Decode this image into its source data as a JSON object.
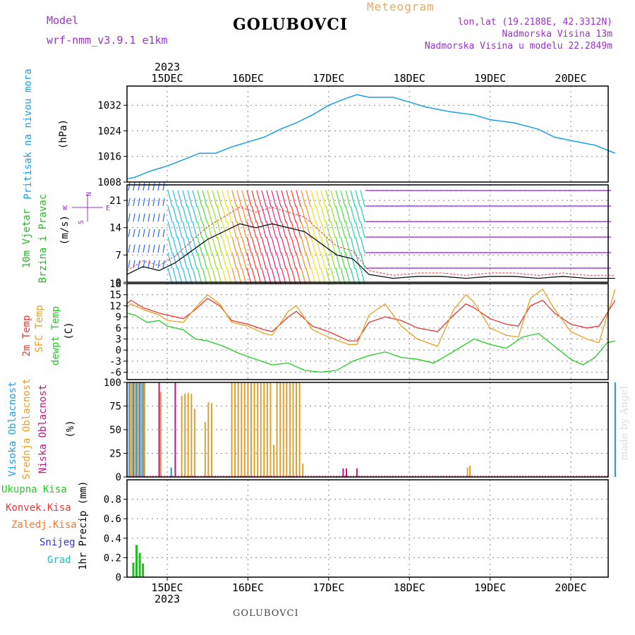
{
  "header": {
    "model_label": "Model",
    "model_name": "wrf-nmm_v3.9.1  e1km",
    "station": "GOLUBOVCI",
    "product": "Meteogram",
    "lonlat": "lon,lat (19.2188E, 42.3312N)",
    "elevation": "Nadmorska Visina 13m",
    "model_elevation": "Nadmorska Visina u modelu 22.2849m"
  },
  "footer": {
    "station": "GOLUBOVCI",
    "credit": "made by Angel"
  },
  "colors": {
    "pressure": "#1a9fe8",
    "temp2m": "#ee3333",
    "sfc": "#e8a020",
    "dewpt": "#22cc22",
    "high_cloud": "#1e90ff",
    "mid_cloud": "#e0a030",
    "low_cloud": "#cc1177",
    "total_rain": "#22bb22",
    "purple": "#9933cc"
  },
  "labels": {
    "pressure": "Pritisak na nivou mora",
    "pressure_unit": "(hPa)",
    "wind1": "10m Vjetar",
    "wind2": "Brzina i Pravac",
    "wind_unit": "(m/s)",
    "compass_n": "N",
    "compass_s": "S",
    "compass_w": "W",
    "compass_e": "E",
    "temp2m": "2m Temp",
    "sfc_temp": "SFC Temp",
    "dewpt": "dewpt Temp",
    "temp_unit": "(C)",
    "high_cloud": "Visoka Oblacnost",
    "mid_cloud": "Srednja Oblacnost",
    "low_cloud": "Niska Oblacnost",
    "cloud_unit": "(%)",
    "total_rain": "Ukupna  Kisa",
    "conv_rain": "Konvek.Kisa",
    "freezing_rain": "Zaledj.Kisa",
    "snow": "Snijeg",
    "hail": "Grad",
    "precip_unit": "1hr Precip (mm)"
  },
  "chart_data": [
    {
      "type": "line",
      "panel": "pressure",
      "xlabel": "",
      "ylabel": "(hPa)",
      "x_days": [
        "15DEC",
        "16DEC",
        "17DEC",
        "18DEC",
        "19DEC",
        "20DEC"
      ],
      "year": "2023",
      "ylim": [
        1008,
        1038
      ],
      "yticks": [
        1008,
        1016,
        1024,
        1032
      ],
      "series": [
        {
          "name": "Pritisak na nivou mora",
          "x": [
            14.5,
            14.6,
            14.8,
            15.0,
            15.2,
            15.4,
            15.6,
            15.8,
            16.0,
            16.2,
            16.4,
            16.6,
            16.8,
            17.0,
            17.2,
            17.35,
            17.5,
            17.8,
            18.0,
            18.2,
            18.5,
            18.8,
            19.0,
            19.3,
            19.6,
            19.8,
            20.0,
            20.3,
            20.55
          ],
          "y": [
            1009,
            1009.5,
            1011.5,
            1013,
            1015,
            1017,
            1017,
            1019,
            1020.5,
            1022,
            1024.5,
            1026.5,
            1029,
            1032,
            1034,
            1035.3,
            1034.5,
            1034.5,
            1033,
            1031.5,
            1030,
            1029,
            1027.5,
            1026.5,
            1024.5,
            1022,
            1021,
            1019.5,
            1017
          ]
        }
      ]
    },
    {
      "type": "line",
      "panel": "wind",
      "ylabel": "(m/s)",
      "ylim": [
        0,
        25
      ],
      "yticks": [
        0,
        7,
        14,
        21
      ],
      "series": [
        {
          "name": "10m Vjetar",
          "x": [
            14.5,
            14.7,
            14.9,
            15.1,
            15.3,
            15.5,
            15.7,
            15.9,
            16.1,
            16.3,
            16.5,
            16.7,
            16.9,
            17.1,
            17.3,
            17.5,
            17.8,
            18.1,
            18.4,
            18.7,
            19.0,
            19.3,
            19.6,
            19.9,
            20.2,
            20.55
          ],
          "y": [
            2,
            4,
            3,
            5,
            8,
            11,
            13,
            15,
            14,
            15,
            14,
            13,
            10,
            7,
            6,
            2,
            1,
            1.5,
            1.5,
            1,
            1.5,
            1.5,
            1,
            1.5,
            1,
            1
          ]
        }
      ]
    },
    {
      "type": "line",
      "panel": "temperature",
      "ylabel": "(C)",
      "ylim": [
        -8,
        18
      ],
      "yticks": [
        -6,
        -3,
        0,
        3,
        6,
        9,
        12,
        15,
        18
      ],
      "series": [
        {
          "name": "2m Temp",
          "x": [
            14.5,
            14.55,
            14.7,
            14.9,
            15.0,
            15.2,
            15.35,
            15.5,
            15.65,
            15.8,
            16.0,
            16.2,
            16.3,
            16.5,
            16.6,
            16.8,
            17.0,
            17.25,
            17.35,
            17.5,
            17.7,
            17.9,
            18.1,
            18.35,
            18.55,
            18.7,
            18.8,
            19.0,
            19.2,
            19.35,
            19.5,
            19.65,
            19.8,
            20.0,
            20.2,
            20.35,
            20.55
          ],
          "y": [
            12.5,
            13.5,
            11.5,
            10,
            9.5,
            8.5,
            11,
            14,
            12,
            8,
            7,
            5.5,
            5,
            9,
            10.5,
            6.5,
            5,
            2.5,
            2.5,
            7.5,
            9,
            8,
            6,
            5,
            9.5,
            12.5,
            11.5,
            8.5,
            7,
            6.5,
            12,
            13.5,
            10,
            7,
            6,
            6.5,
            13.5
          ]
        },
        {
          "name": "SFC Temp",
          "x": [
            14.5,
            14.55,
            14.7,
            14.9,
            15.0,
            15.2,
            15.35,
            15.5,
            15.65,
            15.8,
            16.0,
            16.2,
            16.3,
            16.5,
            16.6,
            16.8,
            17.0,
            17.25,
            17.35,
            17.5,
            17.7,
            17.9,
            18.1,
            18.35,
            18.55,
            18.7,
            18.8,
            19.0,
            19.2,
            19.35,
            19.5,
            19.65,
            19.8,
            20.0,
            20.2,
            20.35,
            20.55
          ],
          "y": [
            11.5,
            12.5,
            11,
            9.5,
            8,
            7.5,
            11.5,
            15,
            12.5,
            7.5,
            6.5,
            4.5,
            4,
            10.5,
            12,
            5.5,
            3.5,
            1.5,
            1.5,
            9.5,
            12.5,
            6.5,
            3,
            1,
            11,
            15,
            13,
            6,
            4,
            3.5,
            14,
            16.5,
            11,
            5,
            3,
            2,
            16.5
          ]
        },
        {
          "name": "dewpt Temp",
          "x": [
            14.5,
            14.6,
            14.75,
            14.9,
            15.0,
            15.2,
            15.35,
            15.5,
            15.7,
            15.9,
            16.1,
            16.3,
            16.5,
            16.7,
            16.9,
            17.1,
            17.3,
            17.5,
            17.7,
            17.9,
            18.1,
            18.3,
            18.5,
            18.65,
            18.8,
            19.0,
            19.2,
            19.4,
            19.6,
            19.8,
            20.0,
            20.15,
            20.3,
            20.45,
            20.55
          ],
          "y": [
            10,
            9.5,
            7.5,
            8,
            6.5,
            5.5,
            3,
            2.5,
            1,
            -1,
            -2.5,
            -4,
            -3.5,
            -5.5,
            -6,
            -5.5,
            -3,
            -1.5,
            -0.5,
            -2,
            -2.5,
            -3.5,
            -1,
            1,
            3,
            1.5,
            0.5,
            3.5,
            4.5,
            1,
            -2.5,
            -4,
            -2,
            2,
            2.5
          ]
        }
      ]
    },
    {
      "type": "bar",
      "panel": "cloud",
      "ylabel": "(%)",
      "ylim": [
        0,
        100
      ],
      "yticks": [
        0,
        25,
        50,
        75,
        100
      ],
      "series": [
        {
          "name": "Visoka Oblacnost",
          "x": [
            14.53,
            14.58,
            14.62,
            14.66,
            14.7,
            15.05,
            20.55
          ],
          "y": [
            100,
            100,
            100,
            100,
            100,
            10,
            100
          ]
        },
        {
          "name": "Srednja Oblacnost",
          "x": [
            14.54,
            14.56,
            14.6,
            14.64,
            14.68,
            14.72,
            14.92,
            15.18,
            15.22,
            15.26,
            15.3,
            15.34,
            15.47,
            15.51,
            15.55,
            15.8,
            15.84,
            15.88,
            15.92,
            15.96,
            16.0,
            16.04,
            16.08,
            16.12,
            16.16,
            16.2,
            16.24,
            16.28,
            16.32,
            16.36,
            16.4,
            16.44,
            16.48,
            16.52,
            16.56,
            16.6,
            16.64,
            16.68,
            18.72,
            18.75
          ],
          "y": [
            100,
            100,
            100,
            100,
            100,
            100,
            90,
            86,
            88,
            89,
            88,
            72,
            58,
            79,
            78,
            100,
            100,
            100,
            100,
            100,
            100,
            100,
            100,
            100,
            100,
            100,
            100,
            100,
            34,
            100,
            100,
            100,
            100,
            100,
            100,
            100,
            100,
            14,
            10,
            12
          ]
        },
        {
          "name": "Niska Oblacnost",
          "x": [
            14.9,
            15.1,
            17.18,
            17.22,
            17.35
          ],
          "y": [
            100,
            100,
            9,
            9,
            9
          ]
        }
      ]
    },
    {
      "type": "bar",
      "panel": "precip",
      "ylabel": "1hr Precip (mm)",
      "ylim": [
        0,
        1.0
      ],
      "yticks": [
        0,
        0.2,
        0.4,
        0.6,
        0.8
      ],
      "series": [
        {
          "name": "Ukupna  Kisa",
          "x": [
            14.58,
            14.62,
            14.66,
            14.7
          ],
          "y": [
            0.15,
            0.33,
            0.25,
            0.14
          ]
        }
      ]
    }
  ]
}
